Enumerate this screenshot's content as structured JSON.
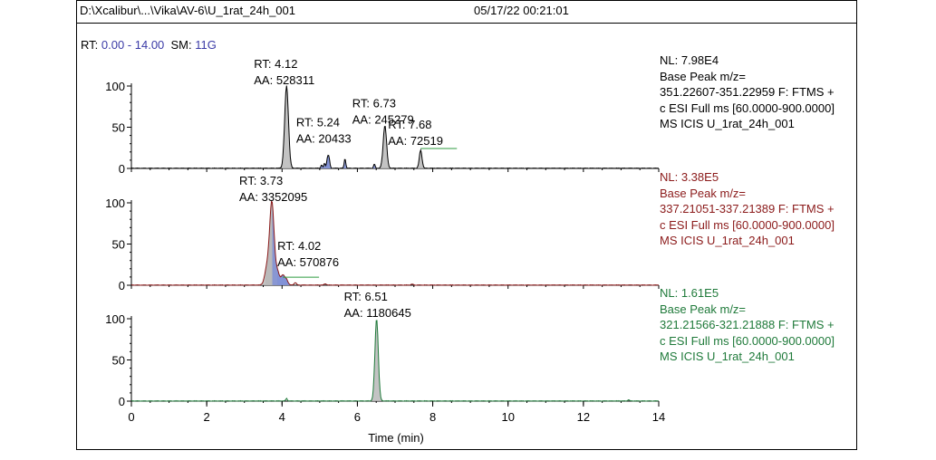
{
  "header": {
    "file_path": "D:\\Xcalibur\\...\\Vika\\AV-6\\U_1rat_24h_001",
    "datetime": "05/17/22 00:21:01"
  },
  "range_line": {
    "rt_label": "RT:",
    "rt_range": "0.00 - 14.00",
    "sm_label": "SM:",
    "sm_value": "11G"
  },
  "colors": {
    "panel1": "#000000",
    "panel2": "#8b1a1a",
    "panel3": "#1f7a3a",
    "fill_gray": "#b9b9b9",
    "fill_blue": "#7f8fd6",
    "blue_text": "#3a3aa6"
  },
  "chart_data": {
    "type": "line",
    "xlabel": "Time (min)",
    "xlim": [
      0,
      14
    ],
    "x_ticks": [
      "0",
      "2",
      "4",
      "6",
      "8",
      "10",
      "12",
      "14"
    ],
    "y_ticks": [
      "0",
      "50",
      "100"
    ],
    "ylim": [
      0,
      100
    ],
    "panels": [
      {
        "color_key": "panel1",
        "info": [
          "NL: 7.98E4",
          "Base Peak m/z=",
          "351.22607-351.22959 F: FTMS +",
          "c ESI Full ms [60.0000-900.0000]",
          "MS  ICIS U_1rat_24h_001"
        ],
        "peaks": [
          {
            "rt": 4.12,
            "height": 100,
            "width": 0.05
          },
          {
            "rt": 5.24,
            "height": 14,
            "width": 0.025
          },
          {
            "rt": 5.13,
            "height": 6,
            "width": 0.02
          },
          {
            "rt": 5.2,
            "height": 9,
            "width": 0.02
          },
          {
            "rt": 5.05,
            "height": 4,
            "width": 0.02
          },
          {
            "rt": 5.67,
            "height": 12,
            "width": 0.02
          },
          {
            "rt": 6.45,
            "height": 5,
            "width": 0.02
          },
          {
            "rt": 6.73,
            "height": 52,
            "width": 0.045
          },
          {
            "rt": 7.68,
            "height": 22,
            "width": 0.035
          }
        ],
        "labels": [
          {
            "rt": "RT: 4.12",
            "aa": "AA: 528311",
            "x": 4.12
          },
          {
            "rt": "RT: 5.24",
            "aa": "AA: 20433",
            "x": 5.24
          },
          {
            "rt": "RT: 6.73",
            "aa": "AA: 245279",
            "x": 6.73
          },
          {
            "rt": "RT: 7.68",
            "aa": "AA: 72519",
            "x": 7.68
          }
        ]
      },
      {
        "color_key": "panel2",
        "info": [
          "NL: 3.38E5",
          "Base Peak m/z=",
          "337.21051-337.21389 F: FTMS +",
          "c ESI Full ms [60.0000-900.0000]",
          "MS  ICIS U_1rat_24h_001"
        ],
        "peaks": [
          {
            "rt": 3.73,
            "height": 100,
            "width": 0.06
          },
          {
            "rt": 3.6,
            "height": 20,
            "width": 0.06
          },
          {
            "rt": 3.88,
            "height": 15,
            "width": 0.05
          },
          {
            "rt": 4.02,
            "height": 12,
            "width": 0.05
          },
          {
            "rt": 4.12,
            "height": 6,
            "width": 0.04
          },
          {
            "rt": 4.35,
            "height": 3,
            "width": 0.03
          },
          {
            "rt": 5.15,
            "height": 1.5,
            "width": 0.03
          },
          {
            "rt": 7.45,
            "height": 1,
            "width": 0.03
          }
        ],
        "labels": [
          {
            "rt": "RT: 3.73",
            "aa": "AA: 3352095",
            "x": 3.73
          },
          {
            "rt": "RT: 4.02",
            "aa": "AA: 570876",
            "x": 4.02
          }
        ]
      },
      {
        "color_key": "panel3",
        "info": [
          "NL: 1.61E5",
          "Base Peak m/z=",
          "321.21566-321.21888 F: FTMS +",
          "c ESI Full ms [60.0000-900.0000]",
          "MS  ICIS U_1rat_24h_001"
        ],
        "peaks": [
          {
            "rt": 6.51,
            "height": 100,
            "width": 0.045
          },
          {
            "rt": 4.12,
            "height": 3,
            "width": 0.02
          },
          {
            "rt": 13.2,
            "height": 1.5,
            "width": 0.02
          }
        ],
        "labels": [
          {
            "rt": "RT: 6.51",
            "aa": "AA: 1180645",
            "x": 6.51
          }
        ]
      }
    ]
  }
}
